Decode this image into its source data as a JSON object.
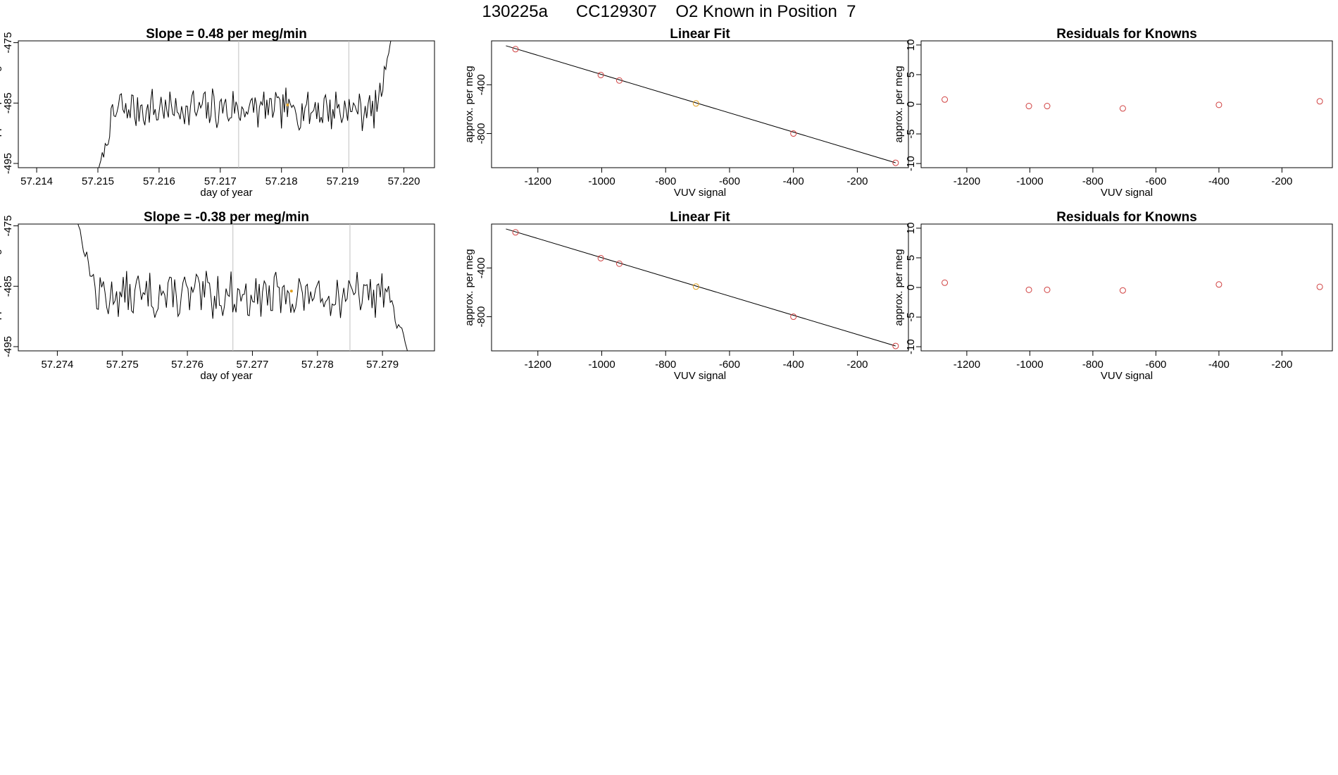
{
  "page_title": "130225a      CC129307    O2 Known in Position  7",
  "colors": {
    "trace": "#000000",
    "gridline": "#c0c0c0",
    "point": "#d04040",
    "highlight": "#e0a020"
  },
  "chart_data": [
    {
      "type": "line",
      "title": "Slope =  0.48  per meg/min",
      "xlabel": "day of year",
      "ylabel": "approx. per meg",
      "xlim": [
        57.2137,
        57.2205
      ],
      "ylim": [
        -495.7,
        -474.7
      ],
      "xticks": [
        57.214,
        57.215,
        57.216,
        57.217,
        57.218,
        57.219,
        57.22
      ],
      "xtick_labels": [
        "57.214",
        "57.215",
        "57.216",
        "57.217",
        "57.218",
        "57.219",
        "57.220"
      ],
      "yticks": [
        -475,
        -485,
        -495
      ],
      "ytick_labels": [
        "-475",
        "-485",
        "-495"
      ],
      "vlines": [
        57.2173,
        57.2191
      ],
      "highlight_point": {
        "x": 57.2181,
        "y": -485.3
      },
      "trace": {
        "x_start": 57.215,
        "x_end": 57.2198,
        "baseline": -486.0,
        "amplitude": 2.0,
        "seed": 7,
        "start_y": -496.5,
        "end_y": -474.0
      }
    },
    {
      "type": "scatter",
      "title": "Linear Fit",
      "xlabel": "VUV signal",
      "ylabel": "approx. per meg",
      "xlim": [
        -1345,
        -40
      ],
      "ylim": [
        -1080,
        -40
      ],
      "xticks": [
        -1200,
        -1000,
        -800,
        -600,
        -400,
        -200
      ],
      "xtick_labels": [
        "-1200",
        "-1000",
        "-800",
        "-600",
        "-400",
        "-200"
      ],
      "yticks": [
        -400,
        -800
      ],
      "ytick_labels": [
        "-400",
        "-800"
      ],
      "fit_line": {
        "x": [
          -1300,
          -80
        ],
        "y": [
          -80,
          -1040
        ]
      },
      "x": [
        -1270,
        -1003,
        -945,
        -705,
        -400,
        -80
      ],
      "y": [
        -108,
        -320,
        -365,
        -553,
        -800,
        -1040
      ],
      "highlight_index": 3
    },
    {
      "type": "scatter",
      "title": "Residuals for Knowns",
      "xlabel": "VUV signal",
      "ylabel": "approx. per meg",
      "xlim": [
        -1345,
        -40
      ],
      "ylim": [
        -10.7,
        10.7
      ],
      "xticks": [
        -1200,
        -1000,
        -800,
        -600,
        -400,
        -200
      ],
      "xtick_labels": [
        "-1200",
        "-1000",
        "-800",
        "-600",
        "-400",
        "-200"
      ],
      "yticks": [
        10,
        5,
        0,
        -5,
        -10
      ],
      "ytick_labels": [
        "10",
        "5",
        "0",
        "-5",
        "-10"
      ],
      "x": [
        -1270,
        -1003,
        -945,
        -705,
        -400,
        -80
      ],
      "y": [
        0.8,
        -0.3,
        -0.3,
        -0.7,
        -0.1,
        0.5
      ]
    },
    {
      "type": "line",
      "title": "Slope =  -0.38  per meg/min",
      "xlabel": "day of year",
      "ylabel": "approx. per meg",
      "xlim": [
        57.2734,
        57.2798
      ],
      "ylim": [
        -495.7,
        -474.7
      ],
      "xticks": [
        57.274,
        57.275,
        57.276,
        57.277,
        57.278,
        57.279
      ],
      "xtick_labels": [
        "57.274",
        "57.275",
        "57.276",
        "57.277",
        "57.278",
        "57.279"
      ],
      "yticks": [
        -475,
        -485,
        -495
      ],
      "ytick_labels": [
        "-475",
        "-485",
        "-495"
      ],
      "vlines": [
        57.2767,
        57.2785
      ],
      "highlight_point": {
        "x": 57.2776,
        "y": -485.8
      },
      "trace": {
        "x_start": 57.2743,
        "x_end": 57.2794,
        "baseline": -486.5,
        "amplitude": 2.2,
        "seed": 13,
        "start_y": -474.0,
        "end_y": -496.5
      }
    },
    {
      "type": "scatter",
      "title": "Linear Fit",
      "xlabel": "VUV signal",
      "ylabel": "approx. per meg",
      "xlim": [
        -1345,
        -40
      ],
      "ylim": [
        -1080,
        -40
      ],
      "xticks": [
        -1200,
        -1000,
        -800,
        -600,
        -400,
        -200
      ],
      "xtick_labels": [
        "-1200",
        "-1000",
        "-800",
        "-600",
        "-400",
        "-200"
      ],
      "yticks": [
        -400,
        -800
      ],
      "ytick_labels": [
        "-400",
        "-800"
      ],
      "fit_line": {
        "x": [
          -1300,
          -80
        ],
        "y": [
          -80,
          -1040
        ]
      },
      "x": [
        -1270,
        -1003,
        -945,
        -705,
        -400,
        -80
      ],
      "y": [
        -108,
        -320,
        -365,
        -553,
        -800,
        -1040
      ],
      "highlight_index": 3
    },
    {
      "type": "scatter",
      "title": "Residuals for Knowns",
      "xlabel": "VUV signal",
      "ylabel": "approx. per meg",
      "xlim": [
        -1345,
        -40
      ],
      "ylim": [
        -10.7,
        10.7
      ],
      "xticks": [
        -1200,
        -1000,
        -800,
        -600,
        -400,
        -200
      ],
      "xtick_labels": [
        "-1200",
        "-1000",
        "-800",
        "-600",
        "-400",
        "-200"
      ],
      "yticks": [
        10,
        5,
        0,
        -5,
        -10
      ],
      "ytick_labels": [
        "10",
        "5",
        "0",
        "-5",
        "-10"
      ],
      "x": [
        -1270,
        -1003,
        -945,
        -705,
        -400,
        -80
      ],
      "y": [
        0.8,
        -0.4,
        -0.4,
        -0.5,
        0.5,
        0.1
      ]
    }
  ]
}
